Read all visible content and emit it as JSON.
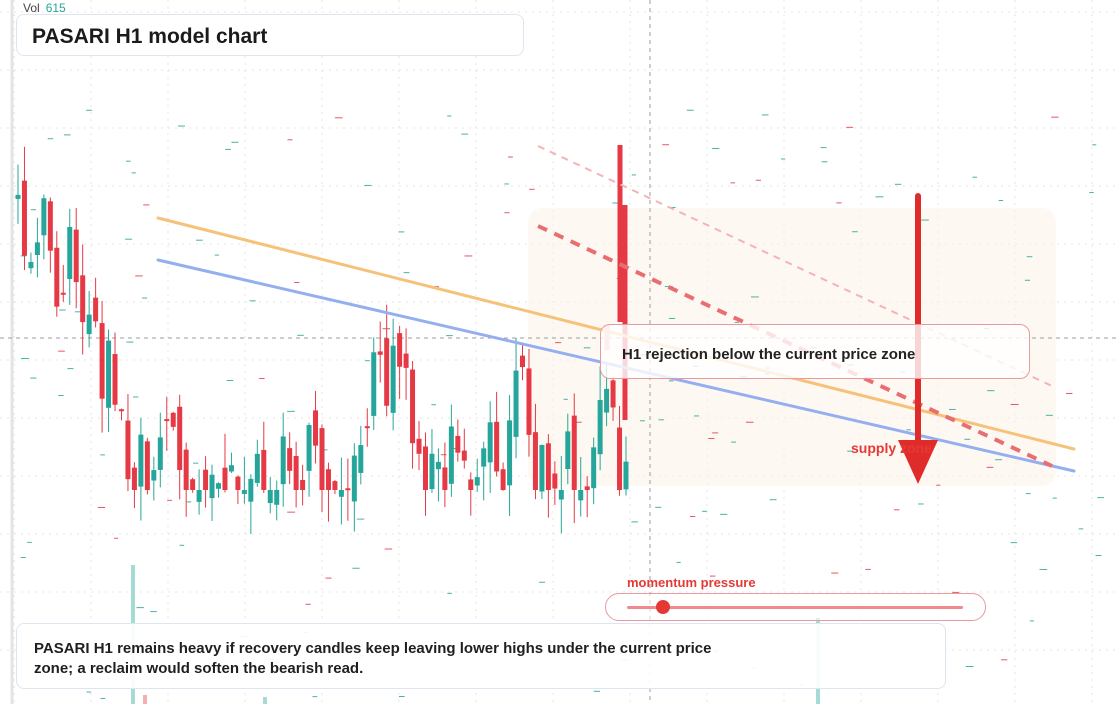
{
  "header": {
    "title": "PASARI H1 model chart"
  },
  "volume_readout": {
    "label": "Vol",
    "value": "615"
  },
  "callout": {
    "text": "H1 rejection below the current price zone"
  },
  "zone": {
    "label": "supply zone"
  },
  "momentum": {
    "label": "momentum pressure",
    "level": 0.07
  },
  "note": {
    "text": "PASARI H1 remains heavy if recovery candles keep leaving lower highs under the current price zone; a reclaim would soften the bearish read."
  },
  "colors": {
    "up": "#26a69a",
    "down": "#e53945",
    "upper_trend": "#f6c27a",
    "lower_trend": "#94aef0",
    "bear_channel": "#e86e72",
    "signal_arrow": "#e02b2b",
    "zone_fill": "#fdf2ea"
  },
  "chart_data": {
    "type": "candlestick",
    "title": "PASARI H1 model chart",
    "xlabel": "",
    "ylabel": "",
    "ylim": [
      0,
      100
    ],
    "grid": true,
    "price_scale": "unlabeled",
    "candles": [
      {
        "o": 58,
        "h": 64,
        "l": 52,
        "c": 53
      },
      {
        "o": 56,
        "h": 59,
        "l": 47,
        "c": 47
      },
      {
        "o": 52,
        "h": 53,
        "l": 51,
        "c": 53
      },
      {
        "o": 54,
        "h": 55,
        "l": 53,
        "c": 55
      },
      {
        "o": 56,
        "h": 57,
        "l": 54,
        "c": 54
      },
      {
        "o": 53,
        "h": 54,
        "l": 52,
        "c": 53
      },
      {
        "o": 55,
        "h": 56,
        "l": 55,
        "c": 56
      },
      {
        "o": 57,
        "h": 58,
        "l": 56,
        "c": 57
      },
      {
        "o": 56,
        "h": 57,
        "l": 56,
        "c": 57
      },
      {
        "o": 54,
        "h": 55,
        "l": 53,
        "c": 53
      },
      {
        "o": 52,
        "h": 53,
        "l": 51,
        "c": 52
      },
      {
        "o": 55,
        "h": 56,
        "l": 54,
        "c": 55
      },
      {
        "o": 56,
        "h": 57,
        "l": 55,
        "c": 56
      },
      {
        "o": 57,
        "h": 58,
        "l": 56,
        "c": 57
      },
      {
        "o": 56,
        "h": 56,
        "l": 55,
        "c": 56
      },
      {
        "o": 55,
        "h": 56,
        "l": 54,
        "c": 55
      },
      {
        "o": 54,
        "h": 55,
        "l": 53,
        "c": 54
      },
      {
        "o": 55,
        "h": 56,
        "l": 54,
        "c": 55
      },
      {
        "o": 56,
        "h": 57,
        "l": 55,
        "c": 56
      },
      {
        "o": 54,
        "h": 55,
        "l": 53,
        "c": 54
      },
      {
        "o": 53,
        "h": 54,
        "l": 52,
        "c": 53
      }
    ],
    "trendlines": [
      {
        "x1": 146,
        "y1": 40,
        "x2": 1074,
        "y2": 1
      },
      {
        "x1": 146,
        "y1": 20,
        "x2": 1074,
        "y2": -26
      }
    ]
  }
}
